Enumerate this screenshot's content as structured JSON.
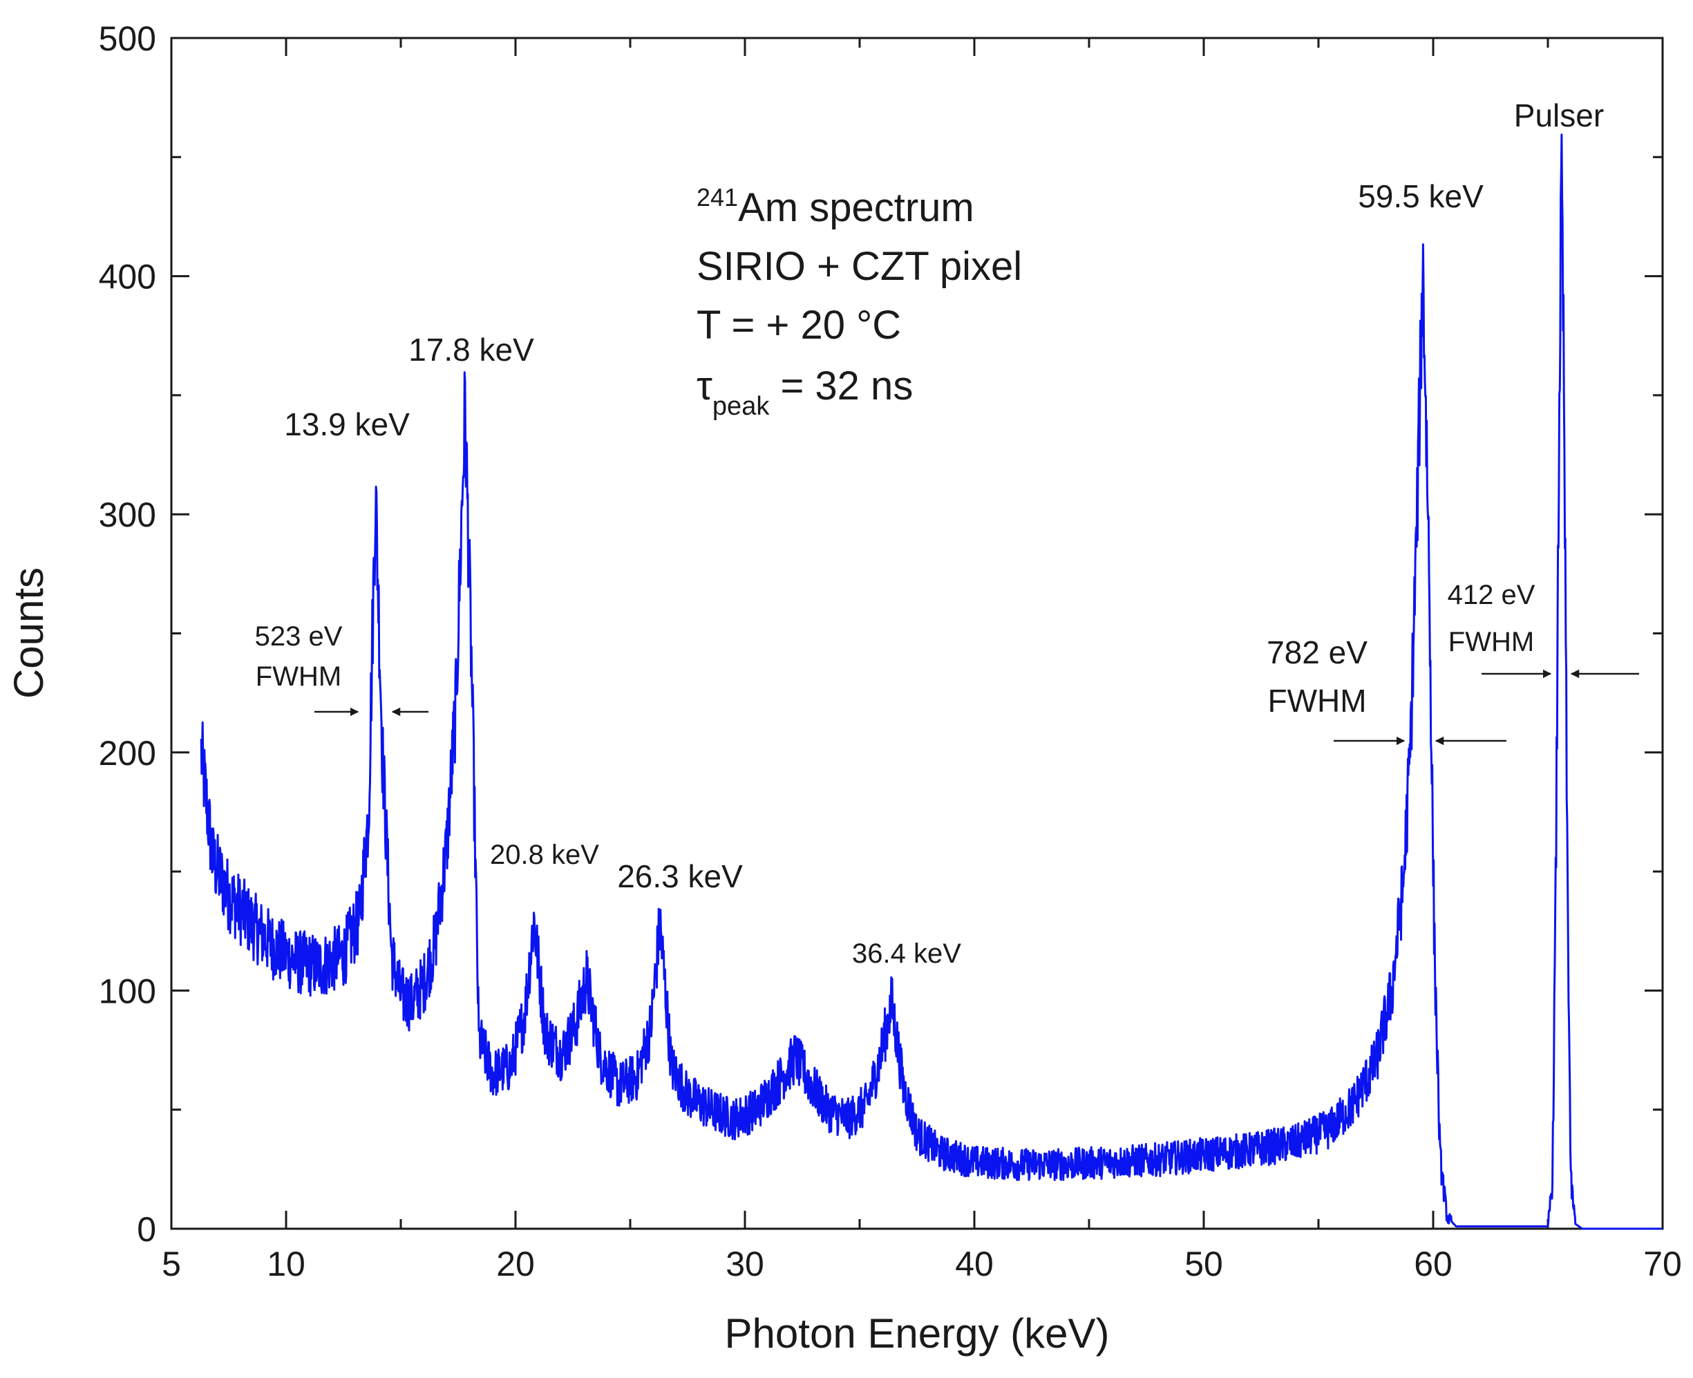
{
  "chart_data": {
    "type": "line",
    "xlabel": "Photon Energy (keV)",
    "ylabel": "Counts",
    "xlim": [
      5,
      70
    ],
    "ylim": [
      0,
      500
    ],
    "x_ticks": [
      5,
      10,
      20,
      30,
      40,
      50,
      60,
      70
    ],
    "x_minor_ticks": [
      15,
      25,
      35,
      45,
      55,
      65
    ],
    "y_ticks": [
      0,
      100,
      200,
      300,
      400,
      500
    ],
    "y_minor_ticks": [
      50,
      150,
      250,
      350,
      450
    ],
    "grid": false,
    "series": [
      {
        "name": "241Am spectrum",
        "color": "#0a14f0",
        "shape_points": [
          [
            6.3,
            200
          ],
          [
            6.8,
            155
          ],
          [
            7.5,
            140
          ],
          [
            8.5,
            128
          ],
          [
            9.5,
            118
          ],
          [
            10.5,
            112
          ],
          [
            11.5,
            110
          ],
          [
            12.5,
            115
          ],
          [
            13.2,
            130
          ],
          [
            13.6,
            175
          ],
          [
            13.9,
            310
          ],
          [
            14.2,
            200
          ],
          [
            14.6,
            115
          ],
          [
            15.0,
            98
          ],
          [
            15.5,
            95
          ],
          [
            16.0,
            103
          ],
          [
            16.5,
            120
          ],
          [
            17.0,
            160
          ],
          [
            17.4,
            220
          ],
          [
            17.8,
            345
          ],
          [
            18.1,
            230
          ],
          [
            18.4,
            80
          ],
          [
            19.0,
            65
          ],
          [
            19.8,
            68
          ],
          [
            20.4,
            90
          ],
          [
            20.8,
            130
          ],
          [
            21.3,
            82
          ],
          [
            22.0,
            73
          ],
          [
            22.6,
            85
          ],
          [
            23.1,
            105
          ],
          [
            23.7,
            72
          ],
          [
            24.5,
            60
          ],
          [
            25.3,
            64
          ],
          [
            25.9,
            85
          ],
          [
            26.3,
            128
          ],
          [
            26.8,
            68
          ],
          [
            27.5,
            56
          ],
          [
            28.5,
            50
          ],
          [
            29.5,
            46
          ],
          [
            30.5,
            50
          ],
          [
            31.5,
            62
          ],
          [
            32.2,
            72
          ],
          [
            32.8,
            62
          ],
          [
            33.6,
            50
          ],
          [
            34.5,
            46
          ],
          [
            35.3,
            52
          ],
          [
            35.9,
            72
          ],
          [
            36.4,
            95
          ],
          [
            36.9,
            60
          ],
          [
            37.5,
            40
          ],
          [
            38.5,
            32
          ],
          [
            40.0,
            28
          ],
          [
            42.0,
            27
          ],
          [
            44.0,
            27
          ],
          [
            46.0,
            28
          ],
          [
            48.0,
            29
          ],
          [
            50.0,
            31
          ],
          [
            52.0,
            33
          ],
          [
            54.0,
            36
          ],
          [
            55.5,
            42
          ],
          [
            56.5,
            52
          ],
          [
            57.5,
            70
          ],
          [
            58.2,
            100
          ],
          [
            58.7,
            145
          ],
          [
            59.0,
            200
          ],
          [
            59.3,
            300
          ],
          [
            59.55,
            405
          ],
          [
            59.8,
            290
          ],
          [
            60.05,
            120
          ],
          [
            60.3,
            30
          ],
          [
            60.6,
            5
          ],
          [
            61.0,
            1
          ],
          [
            62.0,
            1
          ],
          [
            65.0,
            1
          ],
          [
            65.2,
            20
          ],
          [
            65.35,
            150
          ],
          [
            65.5,
            350
          ],
          [
            65.6,
            445
          ],
          [
            65.7,
            350
          ],
          [
            65.85,
            150
          ],
          [
            66.0,
            20
          ],
          [
            66.2,
            2
          ],
          [
            66.5,
            0
          ],
          [
            70.0,
            0
          ]
        ]
      }
    ],
    "annotations": {
      "peaks": [
        {
          "text": "13.9 keV",
          "x": 13.9
        },
        {
          "text": "17.8 keV",
          "x": 17.8
        },
        {
          "text": "20.8 keV",
          "x": 20.8
        },
        {
          "text": "26.3 keV",
          "x": 26.3
        },
        {
          "text": "36.4 keV",
          "x": 36.4
        },
        {
          "text": "59.5 keV",
          "x": 59.5
        },
        {
          "text": "Pulser",
          "x": 65.6
        }
      ],
      "fwhm": [
        {
          "value": "523 eV",
          "unit": "FWHM",
          "peak": 13.9
        },
        {
          "value": "782 eV",
          "unit": "FWHM",
          "peak": 59.5
        },
        {
          "value": "412 eV",
          "unit": "FWHM",
          "peak": 65.6
        }
      ],
      "info": {
        "line1_sup": "241",
        "line1_rest": "Am spectrum",
        "line2": "SIRIO + CZT pixel",
        "line3": "T = + 20 °C",
        "line4_tau": "τ",
        "line4_sub": "peak",
        "line4_rest": " = 32 ns"
      }
    }
  }
}
